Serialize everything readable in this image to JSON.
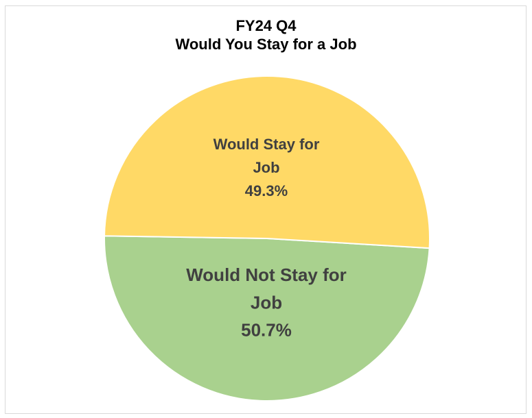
{
  "chart_data": {
    "type": "pie",
    "title_lines": [
      "FY24 Q4",
      "Would You Stay for a Job"
    ],
    "slices": [
      {
        "label": "Would Stay for Job",
        "label_lines": [
          "Would Stay for",
          "Job"
        ],
        "value": 49.3,
        "value_label": "49.3%",
        "color": "#a9d18e"
      },
      {
        "label": "Would Not Stay for Job",
        "label_lines": [
          "Would Not Stay for",
          "Job"
        ],
        "value": 50.7,
        "value_label": "50.7%",
        "color": "#ffd966"
      }
    ],
    "legend": "none"
  }
}
